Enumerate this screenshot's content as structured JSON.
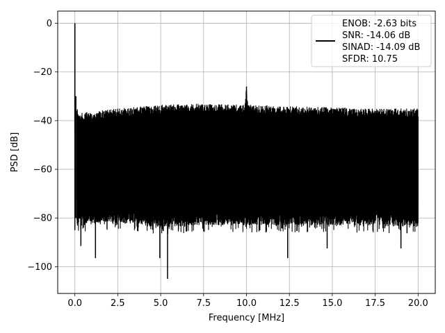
{
  "chart_data": {
    "type": "line",
    "xlabel": "Frequency [MHz]",
    "ylabel": "PSD [dB]",
    "xlim": [
      -1.0,
      21.0
    ],
    "ylim": [
      -111,
      5
    ],
    "xticks": [
      0.0,
      2.5,
      5.0,
      7.5,
      10.0,
      12.5,
      15.0,
      17.5,
      20.0
    ],
    "xtick_labels": [
      "0.0",
      "2.5",
      "5.0",
      "7.5",
      "10.0",
      "12.5",
      "15.0",
      "17.5",
      "20.0"
    ],
    "yticks": [
      0,
      -20,
      -40,
      -60,
      -80,
      -100
    ],
    "ytick_labels": [
      "0",
      "−20",
      "−40",
      "−60",
      "−80",
      "−100"
    ],
    "grid": true,
    "line_color": "#000000",
    "legend": {
      "placement": "top-right",
      "entries": [
        "ENOB: -2.63 bits",
        "SNR: -14.06 dB",
        "SINAD: -14.09 dB",
        "SFDR: 10.75"
      ]
    },
    "series": [
      {
        "description": "noise floor envelope with spurs",
        "x": [
          0.0,
          0.05,
          0.2,
          2.5,
          5.0,
          7.5,
          9.9,
          10.0,
          10.1,
          12.5,
          15.0,
          17.5,
          20.0
        ],
        "upper": [
          0,
          -30,
          -37,
          -35,
          -33.5,
          -33,
          -33.5,
          -26,
          -33.5,
          -34,
          -34.5,
          -35,
          -35
        ],
        "lower": [
          -85,
          -80,
          -78,
          -77,
          -79,
          -78,
          -78,
          -78,
          -78,
          -78,
          -78,
          -78,
          -79
        ]
      }
    ],
    "spurs": [
      {
        "x": 0.0,
        "y": 0
      },
      {
        "x": 10.0,
        "y": -26
      }
    ],
    "dips": [
      {
        "x": 0.35,
        "y": -91.5
      },
      {
        "x": 1.2,
        "y": -96.5
      },
      {
        "x": 4.95,
        "y": -96.5
      },
      {
        "x": 5.4,
        "y": -105
      },
      {
        "x": 12.4,
        "y": -96.5
      },
      {
        "x": 14.7,
        "y": -92.5
      },
      {
        "x": 19.0,
        "y": -92.5
      }
    ]
  }
}
